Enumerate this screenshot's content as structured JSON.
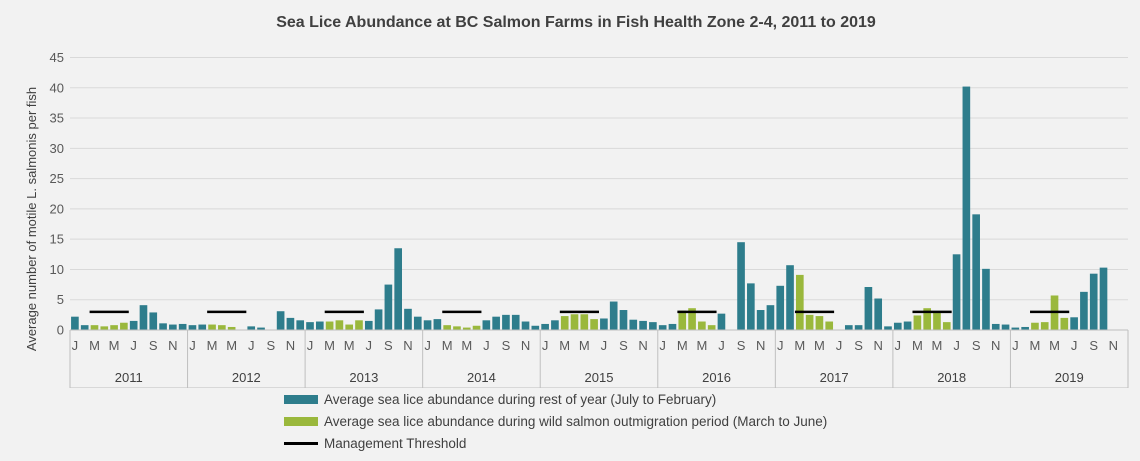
{
  "chart_data": {
    "type": "bar",
    "title": "Sea Lice Abundance at BC Salmon Farms in Fish Health Zone 2-4, 2011 to 2019",
    "xlabel": "",
    "ylabel": "Average number of motile L. salmonis per fish",
    "ylim": [
      0,
      45
    ],
    "yticks": [
      0,
      5,
      10,
      15,
      20,
      25,
      30,
      35,
      40,
      45
    ],
    "grid": true,
    "legend_position": "bottom",
    "years": [
      "2011",
      "2012",
      "2013",
      "2014",
      "2015",
      "2016",
      "2017",
      "2018",
      "2019"
    ],
    "month_labels": [
      "J",
      "M",
      "M",
      "J",
      "S",
      "N"
    ],
    "colors": {
      "rest_of_year": "#2e7d8c",
      "outmigration": "#9ab83c",
      "threshold": "#000000"
    },
    "series": [
      {
        "name": "Average sea lice abundance during rest of year (July to February)",
        "key": "rest_of_year",
        "values": [
          [
            2.2,
            0.8,
            null,
            null,
            null,
            null,
            1.5,
            4.1,
            2.9,
            1.1,
            0.9,
            1.0
          ],
          [
            0.8,
            0.9,
            null,
            null,
            null,
            null,
            0.6,
            0.4,
            null,
            3.1,
            2.0,
            1.6
          ],
          [
            1.3,
            1.4,
            null,
            null,
            null,
            null,
            1.5,
            3.4,
            7.5,
            13.5,
            3.5,
            2.2
          ],
          [
            1.6,
            1.8,
            null,
            null,
            null,
            null,
            1.6,
            2.2,
            2.5,
            2.5,
            1.4,
            0.7
          ],
          [
            1.0,
            1.6,
            null,
            null,
            null,
            null,
            1.9,
            4.7,
            3.3,
            1.7,
            1.5,
            1.3
          ],
          [
            0.8,
            1.0,
            null,
            null,
            null,
            null,
            2.7,
            null,
            14.5,
            7.7,
            3.3,
            4.1
          ],
          [
            7.3,
            10.7,
            null,
            null,
            null,
            null,
            null,
            0.8,
            0.8,
            7.1,
            5.2,
            0.6
          ],
          [
            1.2,
            1.4,
            null,
            null,
            null,
            null,
            12.5,
            40.2,
            19.1,
            10.1,
            1.0,
            0.9
          ],
          [
            0.4,
            0.5,
            null,
            null,
            null,
            null,
            2.1,
            6.3,
            9.3,
            10.3,
            null,
            null
          ]
        ]
      },
      {
        "name": "Average sea lice abundance during wild salmon outmigration period (March to June)",
        "key": "outmigration",
        "values": [
          [
            null,
            null,
            0.8,
            0.6,
            0.8,
            1.2,
            null,
            null,
            null,
            null,
            null,
            null
          ],
          [
            null,
            null,
            0.9,
            0.8,
            0.5,
            null,
            null,
            null,
            null,
            null,
            null,
            null
          ],
          [
            null,
            null,
            1.4,
            1.6,
            0.9,
            1.6,
            null,
            null,
            null,
            null,
            null,
            null
          ],
          [
            null,
            null,
            0.8,
            0.6,
            0.4,
            0.7,
            null,
            null,
            null,
            null,
            null,
            null
          ],
          [
            null,
            null,
            2.3,
            2.6,
            2.6,
            1.8,
            null,
            null,
            null,
            null,
            null,
            null
          ],
          [
            null,
            null,
            3.2,
            3.6,
            1.4,
            0.8,
            null,
            null,
            null,
            null,
            null,
            null
          ],
          [
            null,
            null,
            9.1,
            2.5,
            2.3,
            1.4,
            null,
            null,
            null,
            null,
            null,
            null
          ],
          [
            null,
            null,
            2.4,
            3.6,
            2.9,
            1.3,
            null,
            null,
            null,
            null,
            null,
            null
          ],
          [
            null,
            null,
            1.2,
            1.3,
            5.7,
            2.0,
            null,
            null,
            null,
            null,
            null,
            null
          ]
        ]
      },
      {
        "name": "Management Threshold",
        "key": "threshold",
        "months": [
          3,
          6
        ],
        "value": 3
      }
    ]
  }
}
